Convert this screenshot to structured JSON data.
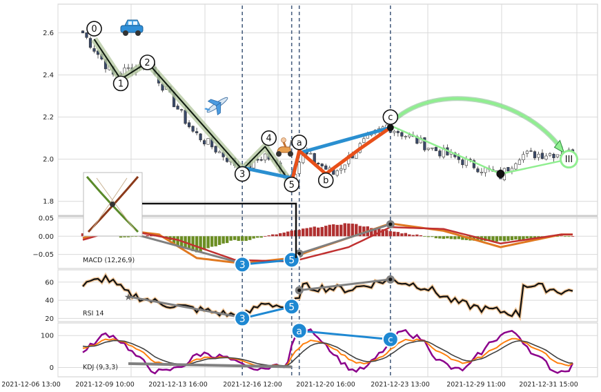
{
  "chart_data": [
    {
      "type": "candlestick",
      "panel": "price",
      "yticks": [
        "2.6",
        "2.4",
        "2.2",
        "2.0",
        "1.8"
      ],
      "ylim": [
        1.74,
        2.73
      ],
      "xticks": [
        "2021-12-06 13:00",
        "2021-12-09 10:00",
        "2021-12-13 16:00",
        "2021-12-16 12:00",
        "2021-12-20 16:00",
        "2021-12-23 13:00",
        "2021-12-29 11:00",
        "2021-12-31 15:00"
      ],
      "anchors": [
        {
          "x": 0,
          "y": 2.6
        },
        {
          "x": 8,
          "y": 2.4
        },
        {
          "x": 17,
          "y": 2.46
        },
        {
          "x": 29,
          "y": 2.13
        },
        {
          "x": 42,
          "y": 1.95
        },
        {
          "x": 48,
          "y": 2.02
        },
        {
          "x": 55,
          "y": 1.91
        },
        {
          "x": 58,
          "y": 2.03
        },
        {
          "x": 66,
          "y": 1.93
        },
        {
          "x": 74,
          "y": 2.08
        },
        {
          "x": 80,
          "y": 2.16
        },
        {
          "x": 92,
          "y": 2.05
        },
        {
          "x": 110,
          "y": 1.92
        },
        {
          "x": 115,
          "y": 2.02
        },
        {
          "x": 126,
          "y": 2.03
        }
      ],
      "wave_labels": [
        {
          "label": "0",
          "x": 3,
          "y": 2.62
        },
        {
          "label": "1",
          "x": 10,
          "y": 2.36
        },
        {
          "label": "2",
          "x": 17,
          "y": 2.46
        },
        {
          "label": "3",
          "x": 42,
          "y": 1.93
        },
        {
          "label": "4",
          "x": 49,
          "y": 2.1
        },
        {
          "label": "5",
          "x": 55,
          "y": 1.88
        },
        {
          "label": "a",
          "x": 57,
          "y": 2.08
        },
        {
          "label": "b",
          "x": 64,
          "y": 1.9
        },
        {
          "label": "c",
          "x": 81,
          "y": 2.2
        },
        {
          "label": "III",
          "x": 128,
          "y": 2.0
        }
      ],
      "impulse_path": [
        {
          "x": 3,
          "y": 2.57
        },
        {
          "x": 10,
          "y": 2.38
        },
        {
          "x": 17,
          "y": 2.46
        },
        {
          "x": 42,
          "y": 1.95
        },
        {
          "x": 48,
          "y": 2.06
        },
        {
          "x": 55,
          "y": 1.88
        }
      ],
      "correction_path": [
        {
          "x": 55,
          "y": 1.89
        },
        {
          "x": 57,
          "y": 2.04
        },
        {
          "x": 64,
          "y": 1.93
        },
        {
          "x": 73,
          "y": 2.05
        },
        {
          "x": 81,
          "y": 2.15
        }
      ],
      "channel_path": [
        {
          "x": 42,
          "y": 1.96
        },
        {
          "x": 55,
          "y": 1.91
        },
        {
          "x": 57,
          "y": 2.03
        },
        {
          "x": 81,
          "y": 2.15
        }
      ],
      "projection_path": [
        {
          "x": 81,
          "y": 2.16
        },
        {
          "x": 110,
          "y": 1.93
        },
        {
          "x": 128,
          "y": 2.0
        }
      ],
      "vlines_x": [
        42,
        55,
        57,
        81
      ]
    },
    {
      "type": "bar+line",
      "panel": "MACD",
      "label": "MACD (12,26,9)",
      "yticks": [
        "0.05",
        "0.00",
        "−0.05"
      ],
      "ylim": [
        -0.085,
        0.05
      ],
      "dif_anchors": [
        {
          "x": 0,
          "y": -0.005
        },
        {
          "x": 8,
          "y": 0.02
        },
        {
          "x": 20,
          "y": 0.005
        },
        {
          "x": 30,
          "y": -0.06
        },
        {
          "x": 42,
          "y": -0.075
        },
        {
          "x": 55,
          "y": -0.06
        },
        {
          "x": 60,
          "y": -0.04
        },
        {
          "x": 81,
          "y": 0.035
        },
        {
          "x": 95,
          "y": 0.015
        },
        {
          "x": 110,
          "y": -0.03
        },
        {
          "x": 126,
          "y": 0.005
        }
      ],
      "dea_anchors": [
        {
          "x": 0,
          "y": -0.01
        },
        {
          "x": 10,
          "y": 0.02
        },
        {
          "x": 25,
          "y": -0.01
        },
        {
          "x": 40,
          "y": -0.065
        },
        {
          "x": 55,
          "y": -0.07
        },
        {
          "x": 70,
          "y": -0.03
        },
        {
          "x": 81,
          "y": 0.025
        },
        {
          "x": 95,
          "y": 0.02
        },
        {
          "x": 110,
          "y": -0.02
        },
        {
          "x": 126,
          "y": 0.005
        }
      ],
      "divergence_points": [
        {
          "x": 10,
          "y": 0.016
        },
        {
          "x": 42,
          "y": -0.075
        },
        {
          "x": 55,
          "y": -0.063
        },
        {
          "x": 57,
          "y": -0.048
        },
        {
          "x": 81,
          "y": 0.033
        }
      ],
      "marker_labels": [
        {
          "label": "3",
          "x": 42,
          "y": -0.078
        },
        {
          "label": "5",
          "x": 55,
          "y": -0.065
        }
      ]
    },
    {
      "type": "line",
      "panel": "RSI",
      "label": "RSI 14",
      "yticks": [
        "60",
        "40",
        "20"
      ],
      "ylim": [
        18,
        72
      ],
      "anchors": [
        {
          "x": 0,
          "y": 56
        },
        {
          "x": 6,
          "y": 65
        },
        {
          "x": 12,
          "y": 47
        },
        {
          "x": 20,
          "y": 37
        },
        {
          "x": 30,
          "y": 30
        },
        {
          "x": 42,
          "y": 22
        },
        {
          "x": 48,
          "y": 38
        },
        {
          "x": 55,
          "y": 30
        },
        {
          "x": 58,
          "y": 55
        },
        {
          "x": 70,
          "y": 52
        },
        {
          "x": 81,
          "y": 63
        },
        {
          "x": 90,
          "y": 55
        },
        {
          "x": 98,
          "y": 38
        },
        {
          "x": 106,
          "y": 30
        },
        {
          "x": 115,
          "y": 25
        },
        {
          "x": 116,
          "y": 58
        },
        {
          "x": 126,
          "y": 50
        }
      ],
      "points": [
        {
          "x": 12,
          "y": 44
        },
        {
          "x": 42,
          "y": 21
        },
        {
          "x": 55,
          "y": 33
        },
        {
          "x": 57,
          "y": 51
        },
        {
          "x": 81,
          "y": 63
        }
      ],
      "marker_labels": [
        {
          "label": "3",
          "x": 42,
          "y": 20
        },
        {
          "label": "5",
          "x": 55,
          "y": 33
        }
      ]
    },
    {
      "type": "line",
      "panel": "KDJ",
      "label": "KDJ (9,3,3)",
      "yticks": [
        "100",
        "0"
      ],
      "ylim": [
        -25,
        135
      ],
      "points": [
        {
          "x": 12,
          "y": 12
        },
        {
          "x": 55,
          "y": 2
        }
      ],
      "marker_labels": [
        {
          "label": "a",
          "x": 57,
          "y": 115
        },
        {
          "label": "c",
          "x": 81,
          "y": 88
        }
      ]
    }
  ],
  "colors": {
    "grid": "#d9d9d9",
    "up": "#ffffff",
    "down": "#3a4a6a",
    "impulse": "#0f1a0f",
    "impulse_glow": "#b7c9a2",
    "correction": "#e8501a",
    "channel": "#2a8fd0",
    "projection": "#90ee90",
    "projection_arrow": "#2e8b3f",
    "marker_blue": "#1e88d2",
    "divergence": "#808080",
    "macd_pos": "#b03030",
    "macd_neg": "#6b8e23",
    "macd_dif": "#e07820",
    "macd_dea": "#c03030",
    "rsi": "#111111",
    "kdj_k": "#ff7f0e",
    "kdj_d": "#404040",
    "kdj_j": "#8b008b",
    "vline": "#4a6080"
  },
  "icons": [
    "car-icon",
    "airplane-icon",
    "scooter-icon",
    "chart-thumbnail-icon"
  ]
}
